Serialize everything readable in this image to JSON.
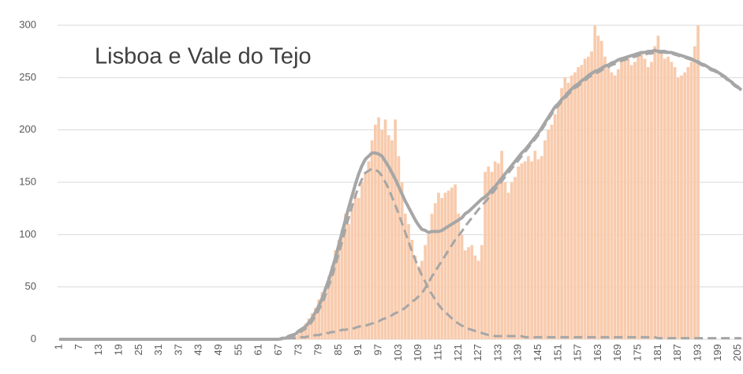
{
  "chart_data": {
    "type": "combo",
    "title": "Lisboa e Vale do Tejo",
    "categories": [
      "1",
      null,
      null,
      null,
      null,
      null,
      "7",
      null,
      null,
      null,
      null,
      null,
      "13",
      null,
      null,
      null,
      null,
      null,
      "19",
      null,
      null,
      null,
      null,
      null,
      "25",
      null,
      null,
      null,
      null,
      null,
      "31",
      null,
      null,
      null,
      null,
      null,
      "37",
      null,
      null,
      null,
      null,
      null,
      "43",
      null,
      null,
      null,
      null,
      null,
      "49",
      null,
      null,
      null,
      null,
      null,
      "55",
      null,
      null,
      null,
      null,
      null,
      "61",
      null,
      null,
      null,
      null,
      null,
      "67",
      null,
      null,
      null,
      null,
      null,
      "73",
      null,
      null,
      null,
      null,
      null,
      "79",
      null,
      null,
      null,
      null,
      null,
      "85",
      null,
      null,
      null,
      null,
      null,
      "91",
      null,
      null,
      null,
      null,
      null,
      "97",
      null,
      null,
      null,
      null,
      null,
      "103",
      null,
      null,
      null,
      null,
      null,
      "109",
      null,
      null,
      null,
      null,
      null,
      "115",
      null,
      null,
      null,
      null,
      null,
      "121",
      null,
      null,
      null,
      null,
      null,
      "127",
      null,
      null,
      null,
      null,
      null,
      "133",
      null,
      null,
      null,
      null,
      null,
      "139",
      null,
      null,
      null,
      null,
      null,
      "145",
      null,
      null,
      null,
      null,
      null,
      "151",
      null,
      null,
      null,
      null,
      null,
      "157",
      null,
      null,
      null,
      null,
      null,
      "163",
      null,
      null,
      null,
      null,
      null,
      "169",
      null,
      null,
      null,
      null,
      null,
      "175",
      null,
      null,
      null,
      null,
      null,
      "181",
      null,
      null,
      null,
      null,
      null,
      "187",
      null,
      null,
      null,
      null,
      null,
      "193",
      null,
      null,
      null,
      null,
      null,
      "199",
      null,
      null,
      null,
      null,
      null,
      "205",
      null
    ],
    "ylim": [
      0,
      300
    ],
    "yticks": [
      0,
      50,
      100,
      150,
      200,
      250,
      300
    ],
    "grid": true,
    "series": [
      {
        "type": "bar",
        "color": "#f8cbad",
        "values": [
          0,
          0,
          0,
          0,
          0,
          0,
          0,
          0,
          0,
          0,
          0,
          0,
          0,
          0,
          0,
          0,
          0,
          0,
          0,
          0,
          0,
          0,
          0,
          0,
          0,
          0,
          0,
          0,
          0,
          0,
          0,
          0,
          0,
          0,
          0,
          0,
          0,
          0,
          0,
          0,
          0,
          0,
          0,
          0,
          0,
          0,
          0,
          0,
          0,
          0,
          0,
          0,
          0,
          0,
          0,
          0,
          0,
          0,
          0,
          0,
          0,
          0,
          0,
          0,
          0,
          0,
          0,
          0,
          0,
          1,
          2,
          3,
          5,
          10,
          15,
          20,
          25,
          30,
          38,
          45,
          50,
          60,
          70,
          85,
          95,
          105,
          120,
          110,
          130,
          140,
          135,
          150,
          160,
          170,
          190,
          205,
          212,
          200,
          210,
          195,
          190,
          210,
          175,
          150,
          120,
          110,
          95,
          80,
          70,
          75,
          90,
          100,
          120,
          130,
          140,
          135,
          140,
          142,
          145,
          148,
          120,
          100,
          85,
          88,
          90,
          80,
          75,
          90,
          160,
          165,
          160,
          170,
          168,
          180,
          150,
          140,
          150,
          155,
          165,
          168,
          170,
          175,
          170,
          180,
          172,
          175,
          190,
          200,
          205,
          215,
          225,
          240,
          250,
          245,
          252,
          255,
          260,
          262,
          268,
          270,
          275,
          300,
          290,
          285,
          270,
          260,
          255,
          252,
          258,
          265,
          270,
          268,
          262,
          265,
          270,
          275,
          268,
          260,
          265,
          280,
          290,
          275,
          268,
          270,
          265,
          260,
          250,
          252,
          255,
          260,
          265,
          280,
          300,
          null,
          null,
          null,
          null,
          null,
          null,
          null,
          null,
          null,
          null,
          null,
          null,
          null
        ]
      },
      {
        "type": "line",
        "color": "#a6a6a6",
        "dashed": true,
        "values": [
          0,
          0,
          0,
          0,
          0,
          0,
          0,
          0,
          0,
          0,
          0,
          0,
          0,
          0,
          0,
          0,
          0,
          0,
          0,
          0,
          0,
          0,
          0,
          0,
          0,
          0,
          0,
          0,
          0,
          0,
          0,
          0,
          0,
          0,
          0,
          0,
          0,
          0,
          0,
          0,
          0,
          0,
          0,
          0,
          0,
          0,
          0,
          0,
          0,
          0,
          0,
          0,
          0,
          0,
          0,
          0,
          0,
          0,
          0,
          0,
          0,
          0,
          0,
          0,
          0,
          0,
          0,
          1,
          1,
          2,
          3,
          4,
          6,
          8,
          10,
          13,
          17,
          22,
          28,
          34,
          42,
          51,
          60,
          71,
          82,
          93,
          105,
          116,
          127,
          137,
          146,
          153,
          159,
          161,
          163,
          162,
          160,
          156,
          150,
          144,
          136,
          128,
          120,
          111,
          102,
          93,
          84,
          76,
          68,
          61,
          55,
          48,
          43,
          38,
          33,
          29,
          26,
          23,
          20,
          17,
          15,
          13,
          12,
          10,
          9,
          8,
          7,
          6,
          5,
          4,
          4,
          3,
          3,
          3,
          3,
          3,
          3,
          3,
          3,
          3,
          2,
          2,
          2,
          2,
          2,
          2,
          2,
          2,
          2,
          2,
          2,
          2,
          2,
          2,
          2,
          2,
          2,
          2,
          2,
          2,
          2,
          2,
          2,
          2,
          2,
          2,
          2,
          2,
          2,
          2,
          2,
          2,
          2,
          2,
          2,
          2,
          2,
          2,
          2,
          2,
          1,
          1,
          1,
          1,
          1,
          1,
          1,
          1,
          1,
          1,
          1,
          1,
          1,
          1,
          1,
          1,
          1,
          1,
          1,
          1,
          1,
          1,
          1,
          1,
          1,
          1
        ]
      },
      {
        "type": "line",
        "color": "#a6a6a6",
        "dashed": true,
        "values": [
          0,
          0,
          0,
          0,
          0,
          0,
          0,
          0,
          0,
          0,
          0,
          0,
          0,
          0,
          0,
          0,
          0,
          0,
          0,
          0,
          0,
          0,
          0,
          0,
          0,
          0,
          0,
          0,
          0,
          0,
          0,
          0,
          0,
          0,
          0,
          0,
          0,
          0,
          0,
          0,
          0,
          0,
          0,
          0,
          0,
          0,
          0,
          0,
          0,
          0,
          0,
          0,
          0,
          0,
          0,
          0,
          0,
          0,
          0,
          0,
          0,
          0,
          0,
          0,
          0,
          0,
          0,
          0,
          0,
          1,
          1,
          1,
          2,
          2,
          2,
          3,
          3,
          4,
          4,
          5,
          6,
          6,
          7,
          7,
          8,
          9,
          9,
          10,
          10,
          11,
          12,
          13,
          13,
          14,
          15,
          16,
          17,
          19,
          20,
          21,
          23,
          25,
          26,
          28,
          30,
          33,
          36,
          38,
          41,
          44,
          49,
          54,
          60,
          65,
          70,
          75,
          80,
          85,
          90,
          95,
          99,
          103,
          108,
          112,
          116,
          120,
          124,
          128,
          131,
          135,
          139,
          143,
          147,
          151,
          155,
          159,
          163,
          167,
          171,
          175,
          179,
          183,
          187,
          191,
          195,
          200,
          205,
          210,
          215,
          220,
          223,
          227,
          230,
          234,
          237,
          240,
          242,
          245,
          247,
          250,
          252,
          254,
          255,
          257,
          259,
          260,
          262,
          263,
          265,
          266,
          267,
          268,
          269,
          270,
          271,
          272,
          272,
          273,
          273,
          274,
          274,
          274,
          274,
          273,
          273,
          272,
          271,
          270,
          269,
          268,
          267,
          265,
          264,
          262,
          261,
          259,
          257,
          256,
          254,
          252,
          250,
          247,
          245,
          242,
          240,
          237
        ]
      },
      {
        "type": "line",
        "color": "#a6a6a6",
        "dashed": false,
        "values": [
          0,
          0,
          0,
          0,
          0,
          0,
          0,
          0,
          0,
          0,
          0,
          0,
          0,
          0,
          0,
          0,
          0,
          0,
          0,
          0,
          0,
          0,
          0,
          0,
          0,
          0,
          0,
          0,
          0,
          0,
          0,
          0,
          0,
          0,
          0,
          0,
          0,
          0,
          0,
          0,
          0,
          0,
          0,
          0,
          0,
          0,
          0,
          0,
          0,
          0,
          0,
          0,
          0,
          0,
          0,
          0,
          0,
          0,
          0,
          0,
          0,
          0,
          0,
          0,
          0,
          0,
          0,
          1,
          1,
          3,
          4,
          5,
          8,
          10,
          12,
          16,
          20,
          26,
          32,
          39,
          48,
          57,
          67,
          78,
          90,
          102,
          114,
          126,
          137,
          148,
          158,
          166,
          172,
          175,
          178,
          178,
          177,
          175,
          170,
          165,
          159,
          153,
          146,
          139,
          132,
          126,
          120,
          114,
          109,
          105,
          104,
          102,
          103,
          103,
          103,
          104,
          106,
          108,
          110,
          112,
          114,
          116,
          120,
          122,
          125,
          128,
          131,
          134,
          136,
          139,
          143,
          146,
          150,
          154,
          158,
          162,
          166,
          170,
          174,
          178,
          181,
          185,
          189,
          193,
          197,
          202,
          207,
          212,
          217,
          222,
          225,
          229,
          232,
          236,
          239,
          242,
          244,
          247,
          249,
          252,
          254,
          256,
          257,
          259,
          261,
          262,
          264,
          265,
          267,
          268,
          269,
          270,
          271,
          272,
          273,
          274,
          274,
          275,
          275,
          276,
          275,
          275,
          275,
          274,
          274,
          273,
          272,
          271,
          270,
          269,
          268,
          266,
          265,
          263,
          262,
          260,
          258,
          257,
          255,
          253,
          251,
          248,
          246,
          243,
          241,
          238
        ]
      }
    ]
  }
}
